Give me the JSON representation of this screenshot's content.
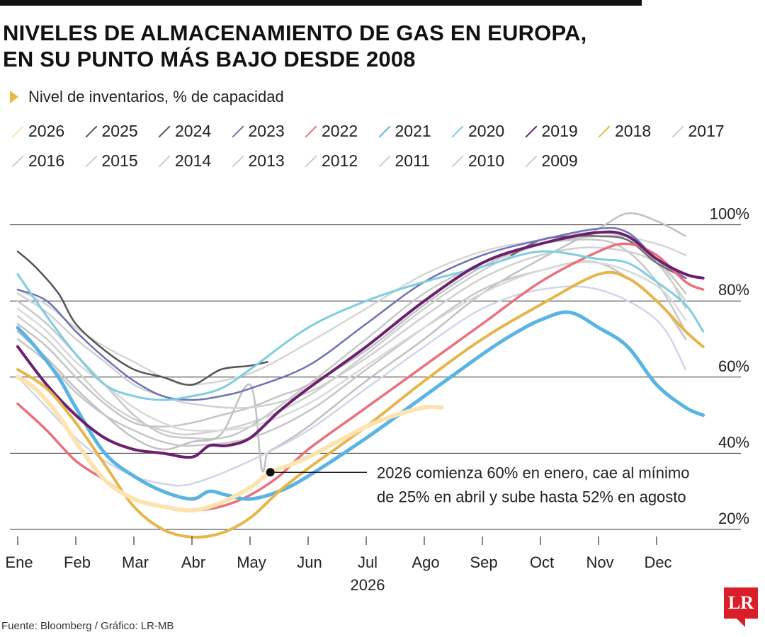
{
  "title_line1": "NIVELES DE ALMACENAMIENTO DE GAS EN EUROPA,",
  "title_line2": "EN SU PUNTO MÁS BAJO DESDE 2008",
  "subtitle": "Nivel de inventarios, % de capacidad",
  "footer": "Fuente: Bloomberg  / Gráfico: LR-MB",
  "logo_text": "LR",
  "annotation": {
    "line1": "2026 comienza 60% en enero, cae al mínimo",
    "line2": "de 25% en abril y sube hasta 52% en agosto"
  },
  "legend": [
    {
      "label": "2026",
      "color": "#fde3b0"
    },
    {
      "label": "2025",
      "color": "#555555"
    },
    {
      "label": "2024",
      "color": "#555555"
    },
    {
      "label": "2023",
      "color": "#6e72b6"
    },
    {
      "label": "2022",
      "color": "#e9707c"
    },
    {
      "label": "2021",
      "color": "#5ab4e3"
    },
    {
      "label": "2020",
      "color": "#7fcde0"
    },
    {
      "label": "2019",
      "color": "#6b1f6e"
    },
    {
      "label": "2018",
      "color": "#e6b54b"
    },
    {
      "label": "2017",
      "color": "#cccccc"
    },
    {
      "label": "2016",
      "color": "#cccccc"
    },
    {
      "label": "2015",
      "color": "#cccccc"
    },
    {
      "label": "2014",
      "color": "#cccccc"
    },
    {
      "label": "2013",
      "color": "#cccccc"
    },
    {
      "label": "2012",
      "color": "#cccccc"
    },
    {
      "label": "2011",
      "color": "#cccccc"
    },
    {
      "label": "2010",
      "color": "#cccccc"
    },
    {
      "label": "2009",
      "color": "#cccccc"
    }
  ],
  "chart_data": {
    "type": "line",
    "x_unit": "mes",
    "x_labels": [
      "Ene",
      "Feb",
      "Mar",
      "Abr",
      "May",
      "Jun",
      "Jul",
      "Ago",
      "Sep",
      "Oct",
      "Nov",
      "Dec"
    ],
    "x_axis_year": "2026",
    "ylim": [
      20,
      100
    ],
    "y_ticks": [
      {
        "value": 20,
        "label": "20%"
      },
      {
        "value": 40,
        "label": "40%"
      },
      {
        "value": 60,
        "label": "60%"
      },
      {
        "value": 80,
        "label": "80%"
      },
      {
        "value": 100,
        "label": "100%"
      }
    ],
    "grid": true,
    "annotation_point": {
      "series": "2026",
      "x": 4.35,
      "y": 35
    },
    "series": [
      {
        "name": "2017",
        "color": "#c8c8c8",
        "width": 2.5,
        "x": [
          0,
          0.5,
          1,
          1.5,
          2,
          2.5,
          3,
          3.5,
          4,
          5,
          6,
          7,
          8,
          9,
          10,
          10.5,
          11,
          11.5
        ],
        "y": [
          80,
          74,
          66,
          58,
          50,
          45,
          44,
          44,
          47,
          58,
          70,
          82,
          90,
          95,
          96,
          93,
          85,
          72
        ]
      },
      {
        "name": "2016",
        "color": "#cfcfcf",
        "width": 2.5,
        "x": [
          0,
          0.5,
          1,
          1.5,
          2,
          2.5,
          3,
          4,
          5,
          6,
          7,
          8,
          9,
          10,
          10.5,
          11,
          11.5
        ],
        "y": [
          76,
          70,
          62,
          54,
          49,
          46,
          45,
          48,
          55,
          66,
          78,
          88,
          95,
          98,
          96,
          90,
          80
        ]
      },
      {
        "name": "2015",
        "color": "#c4c4c4",
        "width": 2.5,
        "x": [
          0,
          0.5,
          1,
          1.5,
          2,
          2.5,
          3,
          3.5,
          4,
          4.5,
          5,
          6,
          7,
          8,
          9,
          10,
          10.5,
          11,
          11.5
        ],
        "y": [
          74,
          68,
          60,
          53,
          48,
          47,
          48,
          50,
          52,
          55,
          58,
          67,
          79,
          89,
          95,
          97,
          96,
          91,
          82
        ]
      },
      {
        "name": "2014",
        "color": "#d6d6d6",
        "width": 2.5,
        "x": [
          0,
          0.5,
          1,
          1.5,
          2,
          2.5,
          3,
          4,
          5,
          6,
          7,
          8,
          9,
          10,
          11,
          11.5
        ],
        "y": [
          83,
          79,
          73,
          68,
          64,
          60,
          58,
          61,
          69,
          78,
          87,
          93,
          96,
          98,
          95,
          92
        ]
      },
      {
        "name": "2013",
        "color": "#c0c0c0",
        "width": 2.5,
        "x": [
          0,
          0.5,
          1,
          1.5,
          2,
          2.5,
          3,
          3.5,
          4,
          4.2,
          4.3,
          4.5,
          5,
          6,
          7,
          8,
          9,
          10,
          10.5,
          11,
          11.5
        ],
        "y": [
          72,
          65,
          57,
          50,
          44,
          41,
          43,
          45,
          58,
          36,
          40,
          42,
          47,
          59,
          70,
          82,
          91,
          99,
          103,
          101,
          97
        ]
      },
      {
        "name": "2012",
        "color": "#d0d0d0",
        "width": 2.5,
        "x": [
          0,
          0.5,
          1,
          1.5,
          2,
          2.5,
          3,
          4,
          5,
          6,
          7,
          8,
          9,
          10,
          11,
          11.5
        ],
        "y": [
          82,
          77,
          70,
          64,
          58,
          55,
          53,
          52,
          56,
          65,
          76,
          86,
          92,
          94,
          90,
          78
        ]
      },
      {
        "name": "2011",
        "color": "#c6c6c6",
        "width": 2.5,
        "x": [
          0,
          0.5,
          1,
          1.5,
          2,
          2.5,
          3,
          4,
          5,
          6,
          7,
          8,
          9,
          10,
          11,
          11.5
        ],
        "y": [
          70,
          64,
          56,
          50,
          46,
          43,
          42,
          44,
          51,
          62,
          73,
          83,
          88,
          90,
          80,
          70
        ]
      },
      {
        "name": "2010",
        "color": "#d9d9d9",
        "width": 2.5,
        "x": [
          0,
          0.5,
          1,
          1.5,
          2,
          2.5,
          3,
          4,
          5,
          6,
          7,
          8,
          9,
          10,
          11,
          11.5
        ],
        "y": [
          78,
          72,
          64,
          58,
          52,
          48,
          46,
          47,
          53,
          63,
          73,
          82,
          88,
          90,
          84,
          75
        ]
      },
      {
        "name": "2009",
        "color": "#cfd6ea",
        "width": 2.5,
        "x": [
          0,
          0.5,
          1,
          1.5,
          2,
          2.5,
          3,
          4,
          5,
          6,
          7,
          8,
          9,
          10,
          11,
          11.5
        ],
        "y": [
          60,
          52,
          44,
          38,
          34,
          32,
          32,
          38,
          46,
          57,
          68,
          78,
          83,
          83,
          75,
          62
        ]
      },
      {
        "name": "2025",
        "color": "#555555",
        "width": 2.5,
        "x": [
          0,
          0.3,
          0.7,
          1,
          1.5,
          2,
          2.5,
          3,
          3.5,
          4,
          4.3
        ],
        "y": [
          93,
          89,
          82,
          74,
          67,
          62,
          60,
          58,
          62,
          63,
          64
        ]
      },
      {
        "name": "2024",
        "color": "#6f6f6f",
        "width": 2.5,
        "x": [
          8.5,
          9,
          9.5,
          10,
          10.5,
          11,
          11.5
        ],
        "y": [
          92,
          96,
          97,
          97,
          96,
          90,
          86
        ]
      },
      {
        "name": "2023",
        "color": "#6e72b6",
        "width": 2.5,
        "x": [
          0,
          0.5,
          1,
          1.5,
          2,
          2.5,
          3,
          3.5,
          4,
          5,
          6,
          7,
          8,
          9,
          10,
          10.5,
          11,
          11.5
        ],
        "y": [
          83,
          80,
          72,
          65,
          59,
          55,
          54,
          55,
          57,
          63,
          74,
          85,
          92,
          96,
          99,
          98,
          91,
          86
        ]
      },
      {
        "name": "2022",
        "color": "#e9707c",
        "width": 3.5,
        "x": [
          0,
          0.5,
          1,
          1.5,
          2,
          2.5,
          3,
          3.5,
          4,
          4.5,
          5,
          6,
          7,
          8,
          9,
          10,
          10.5,
          11,
          11.5,
          11.8
        ],
        "y": [
          53,
          46,
          38,
          33,
          28,
          26,
          25,
          26,
          29,
          34,
          41,
          52,
          63,
          74,
          85,
          93,
          95,
          92,
          85,
          83
        ]
      },
      {
        "name": "2021",
        "color": "#5ab4e3",
        "width": 5,
        "x": [
          0,
          0.3,
          0.7,
          1,
          1.5,
          2,
          2.5,
          3,
          3.3,
          3.6,
          4,
          4.5,
          5,
          6,
          7,
          8,
          8.5,
          9,
          9.5,
          10,
          10.5,
          11,
          11.5,
          11.8
        ],
        "y": [
          73,
          68,
          60,
          52,
          40,
          34,
          30,
          28,
          30,
          29,
          28,
          30,
          34,
          44,
          55,
          66,
          71,
          75,
          77,
          73,
          68,
          58,
          52,
          50
        ]
      },
      {
        "name": "2020",
        "color": "#7fcde0",
        "width": 3,
        "x": [
          0,
          0.5,
          1,
          1.5,
          2,
          2.5,
          3,
          3.5,
          4,
          5,
          6,
          7,
          8,
          9,
          10,
          10.5,
          11,
          11.5,
          11.8
        ],
        "y": [
          87,
          76,
          66,
          58,
          55,
          54,
          55,
          57,
          62,
          73,
          80,
          85,
          89,
          93,
          91,
          90,
          85,
          79,
          72
        ]
      },
      {
        "name": "2019",
        "color": "#6b1f6e",
        "width": 4,
        "x": [
          0,
          0.5,
          1,
          1.5,
          2,
          2.5,
          3,
          3.3,
          3.6,
          4,
          4.5,
          5,
          6,
          7,
          8,
          9,
          10,
          10.5,
          11,
          11.5,
          11.8
        ],
        "y": [
          68,
          58,
          50,
          44,
          41,
          40,
          39,
          42,
          42,
          44,
          51,
          57,
          68,
          80,
          90,
          95,
          98,
          97,
          91,
          87,
          86
        ]
      },
      {
        "name": "2018",
        "color": "#e6b54b",
        "width": 4,
        "x": [
          0,
          0.5,
          1,
          1.5,
          2,
          2.5,
          3,
          3.5,
          4,
          4.5,
          5,
          6,
          7,
          8,
          9,
          10,
          10.5,
          11,
          11.5,
          11.8
        ],
        "y": [
          62,
          57,
          48,
          37,
          26,
          20,
          18,
          19,
          23,
          30,
          36,
          47,
          59,
          70,
          79,
          87,
          86,
          80,
          72,
          68
        ]
      },
      {
        "name": "2026",
        "color": "#fde3b0",
        "width": 6,
        "x": [
          0,
          0.3,
          0.7,
          1,
          1.5,
          2,
          2.5,
          3,
          3.5,
          4,
          4.35,
          4.7,
          5,
          5.5,
          6,
          6.5,
          7,
          7.3
        ],
        "y": [
          60,
          57,
          50,
          43,
          33,
          28,
          26,
          25,
          27,
          31,
          35,
          37,
          39,
          43,
          47,
          50,
          52,
          52
        ]
      }
    ]
  }
}
